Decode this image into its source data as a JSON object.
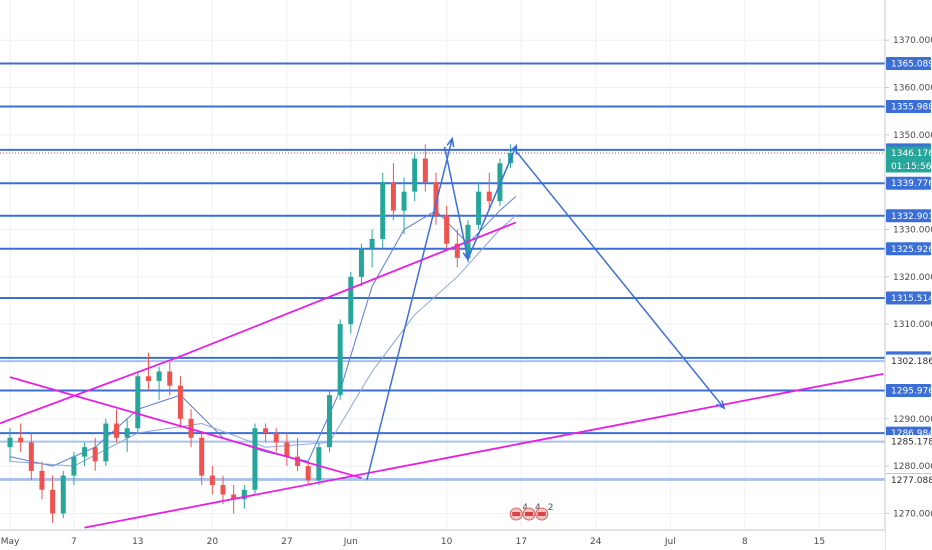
{
  "chart_data": {
    "type": "candlestick",
    "y_range": [
      1266.5,
      1378.5
    ],
    "x_range_days": [
      0,
      82
    ],
    "y_ticks": [
      "1370.000",
      "1360.000",
      "1350.000",
      "1330.000",
      "1320.000",
      "1310.000",
      "1290.000",
      "1280.000",
      "1270.000"
    ],
    "y_tick_values": [
      1370,
      1360,
      1350,
      1330,
      1320,
      1310,
      1290,
      1280,
      1270
    ],
    "x_ticks": [
      {
        "label": "May",
        "day": 0
      },
      {
        "label": "7",
        "day": 6
      },
      {
        "label": "13",
        "day": 12
      },
      {
        "label": "20",
        "day": 19
      },
      {
        "label": "27",
        "day": 26
      },
      {
        "label": "Jun",
        "day": 32
      },
      {
        "label": "10",
        "day": 41
      },
      {
        "label": "17",
        "day": 48
      },
      {
        "label": "24",
        "day": 55
      },
      {
        "label": "Jul",
        "day": 62
      },
      {
        "label": "8",
        "day": 69
      },
      {
        "label": "15",
        "day": 76
      }
    ],
    "levels": [
      {
        "label": "1365.089",
        "value": 1365.089,
        "tagged": true
      },
      {
        "label": "1355.988",
        "value": 1355.988,
        "tagged": true
      },
      {
        "label": "1346.833",
        "value": 1346.833,
        "tagged": true
      },
      {
        "label": "1339.776",
        "value": 1339.776,
        "tagged": true
      },
      {
        "label": "1332.901",
        "value": 1332.901,
        "tagged": true
      },
      {
        "label": "1325.926",
        "value": 1325.926,
        "tagged": true
      },
      {
        "label": "1315.514",
        "value": 1315.514,
        "tagged": true
      },
      {
        "label": "1302.866",
        "value": 1302.866,
        "tagged": true
      },
      {
        "label": "1302.186",
        "value": 1302.186,
        "tagged": false
      },
      {
        "label": "1295.976",
        "value": 1295.976,
        "tagged": true
      },
      {
        "label": "1286.984",
        "value": 1286.984,
        "tagged": true
      },
      {
        "label": "1285.178",
        "value": 1285.178,
        "tagged": false
      },
      {
        "label": "1277.173",
        "value": 1277.173,
        "tagged": true
      },
      {
        "label": "1277.088",
        "value": 1277.088,
        "tagged": false
      }
    ],
    "current_price": {
      "value": 1346.176,
      "label": "1346.176",
      "countdown": "01:15:56"
    },
    "trendlines": [
      {
        "color": "#e91ee3",
        "points": [
          [
            -1,
            1289
          ],
          [
            16,
            1303.2
          ],
          [
            47.5,
            1331.5
          ]
        ]
      },
      {
        "color": "#e91ee3",
        "points": [
          [
            7,
            1267
          ],
          [
            82,
            1299.5
          ]
        ]
      },
      {
        "color": "#e91ee3",
        "points": [
          [
            0,
            1298.8
          ],
          [
            33,
            1277.5
          ]
        ]
      }
    ],
    "arrows": [
      {
        "color": "#3b6fd6",
        "points": [
          [
            33.5,
            1277
          ],
          [
            41.5,
            1349
          ]
        ]
      },
      {
        "color": "#3b6fd6",
        "points": [
          [
            40.8,
            1347.5
          ],
          [
            43,
            1323.8
          ]
        ]
      },
      {
        "color": "#3b6fd6",
        "points": [
          [
            43,
            1323.8
          ],
          [
            47.5,
            1347.5
          ]
        ]
      },
      {
        "color": "#3b6fd6",
        "points": [
          [
            47.5,
            1346.6
          ],
          [
            67,
            1292.4
          ]
        ]
      }
    ],
    "candles": [
      [
        0,
        1284,
        1288,
        1281,
        1286
      ],
      [
        1,
        1286,
        1289,
        1283,
        1285
      ],
      [
        2,
        1285,
        1287,
        1277,
        1279
      ],
      [
        3,
        1279,
        1281,
        1273,
        1275
      ],
      [
        4,
        1275,
        1278,
        1268,
        1270
      ],
      [
        5,
        1270,
        1279,
        1269,
        1278
      ],
      [
        6,
        1278,
        1283,
        1276,
        1282
      ],
      [
        7,
        1282,
        1285,
        1280,
        1284
      ],
      [
        8,
        1284,
        1286,
        1279,
        1281
      ],
      [
        9,
        1281,
        1290,
        1280,
        1289
      ],
      [
        10,
        1289,
        1292,
        1285,
        1286
      ],
      [
        11,
        1286,
        1290,
        1283,
        1288
      ],
      [
        12,
        1288,
        1300,
        1287,
        1299
      ],
      [
        13,
        1299,
        1304,
        1296,
        1298
      ],
      [
        14,
        1298,
        1301,
        1294,
        1300
      ],
      [
        15,
        1300,
        1302,
        1295,
        1297
      ],
      [
        16,
        1297,
        1299,
        1288,
        1290
      ],
      [
        17,
        1290,
        1292,
        1284,
        1286
      ],
      [
        18,
        1286,
        1287,
        1276,
        1278
      ],
      [
        19,
        1278,
        1280,
        1274,
        1276
      ],
      [
        20,
        1276,
        1278,
        1272,
        1274
      ],
      [
        21,
        1274,
        1276,
        1270,
        1273
      ],
      [
        22,
        1273,
        1276,
        1271,
        1275
      ],
      [
        23,
        1275,
        1289,
        1274,
        1288
      ],
      [
        24,
        1288,
        1289,
        1285,
        1287
      ],
      [
        25,
        1287,
        1288,
        1283,
        1285
      ],
      [
        26,
        1285,
        1287,
        1280,
        1282
      ],
      [
        27,
        1282,
        1286,
        1279,
        1280
      ],
      [
        28,
        1280,
        1281,
        1276,
        1277
      ],
      [
        29,
        1277,
        1285,
        1276,
        1284
      ],
      [
        30,
        1284,
        1296,
        1283,
        1295
      ],
      [
        31,
        1295,
        1311,
        1294,
        1310
      ],
      [
        32,
        1310,
        1321,
        1308,
        1320
      ],
      [
        33,
        1320,
        1327,
        1318,
        1326
      ],
      [
        34,
        1326,
        1330,
        1322,
        1328
      ],
      [
        35,
        1328,
        1342,
        1326,
        1340
      ],
      [
        36,
        1340,
        1344,
        1332,
        1334
      ],
      [
        37,
        1334,
        1341,
        1329,
        1338
      ],
      [
        38,
        1338,
        1346,
        1336,
        1345
      ],
      [
        39,
        1345,
        1348,
        1338,
        1340
      ],
      [
        40,
        1340,
        1342,
        1331,
        1333
      ],
      [
        41,
        1333,
        1335,
        1326,
        1327
      ],
      [
        42,
        1327,
        1330,
        1322,
        1324
      ],
      [
        43,
        1324,
        1332,
        1323,
        1331
      ],
      [
        44,
        1331,
        1340,
        1330,
        1338
      ],
      [
        45,
        1338,
        1342,
        1334,
        1336
      ],
      [
        46,
        1336,
        1345,
        1335,
        1344
      ],
      [
        47,
        1344,
        1348,
        1343,
        1346.176
      ]
    ],
    "ma_series": [
      {
        "name": "",
        "color": "#5a7bd1",
        "values": [
          [
            0,
            1282
          ],
          [
            4,
            1280
          ],
          [
            8,
            1284
          ],
          [
            12,
            1292
          ],
          [
            16,
            1295
          ],
          [
            20,
            1286
          ],
          [
            24,
            1283
          ],
          [
            28,
            1281
          ],
          [
            31,
            1296
          ],
          [
            34,
            1318
          ],
          [
            37,
            1330
          ],
          [
            40,
            1334
          ],
          [
            43,
            1327
          ],
          [
            46,
            1334
          ],
          [
            47.5,
            1337
          ]
        ]
      },
      {
        "name": "",
        "color": "#8da3d8",
        "values": [
          [
            0,
            1281
          ],
          [
            6,
            1280
          ],
          [
            12,
            1287
          ],
          [
            18,
            1289
          ],
          [
            24,
            1284
          ],
          [
            30,
            1285
          ],
          [
            34,
            1300
          ],
          [
            38,
            1312
          ],
          [
            42,
            1320
          ],
          [
            46,
            1330
          ],
          [
            47.5,
            1333
          ]
        ]
      }
    ],
    "markers": [
      "4",
      "4",
      "2"
    ]
  }
}
